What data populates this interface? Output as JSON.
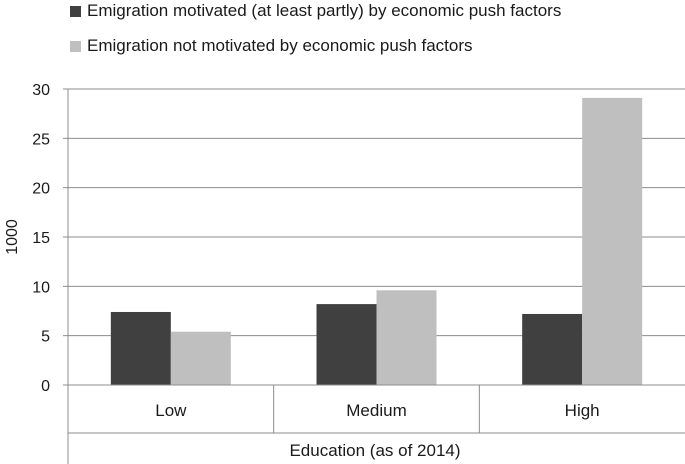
{
  "chart_data": {
    "type": "bar",
    "xlabel": "Education (as of 2014)",
    "ylabel": "1000",
    "categories": [
      "Low",
      "Medium",
      "High"
    ],
    "ylim": [
      0,
      30
    ],
    "yticks": [
      0,
      5,
      10,
      15,
      20,
      25,
      30
    ],
    "grid": true,
    "legend_position": "top",
    "series": [
      {
        "name": "Emigration motivated (at least partly) by economic push factors",
        "values": [
          7.4,
          8.2,
          7.2
        ],
        "color": "#404040"
      },
      {
        "name": "Emigration not motivated  by economic push factors",
        "values": [
          5.4,
          9.6,
          29.1
        ],
        "color": "#bfbfbf"
      }
    ]
  }
}
